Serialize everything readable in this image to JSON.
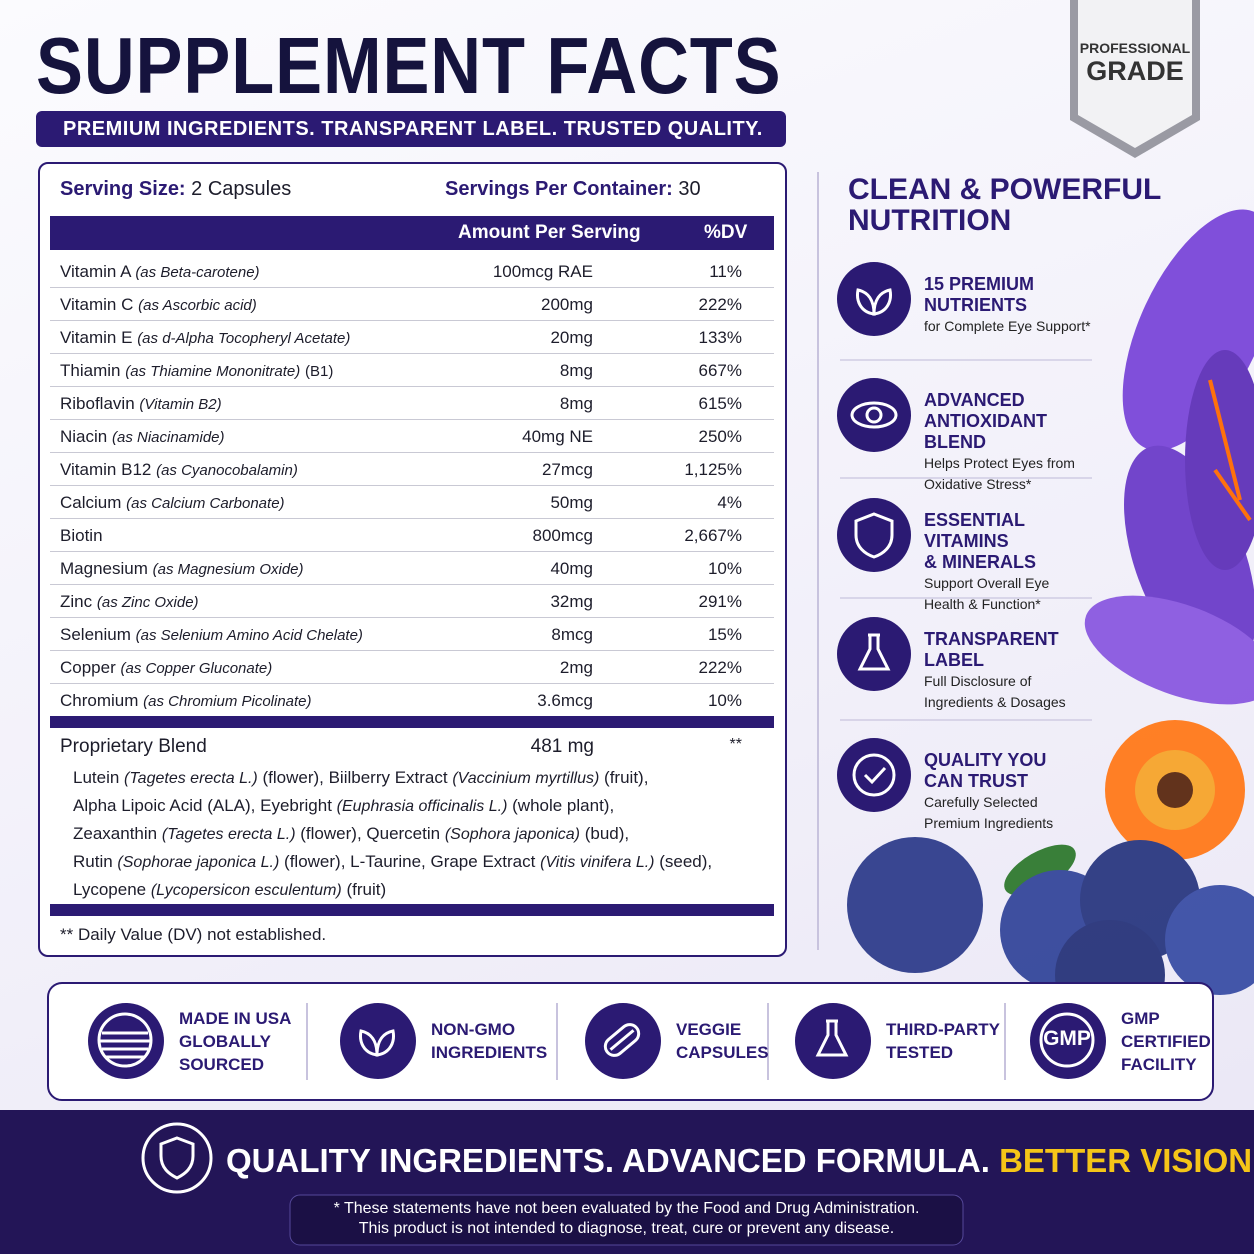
{
  "header": {
    "title": "SUPPLEMENT FACTS",
    "tagline": "PREMIUM INGREDIENTS. TRANSPARENT LABEL. TRUSTED QUALITY."
  },
  "badge": [
    "PROFESSIONAL",
    "GRADE"
  ],
  "facts": {
    "serving_size_label": "Serving Size:",
    "serving_size": "2 Capsules",
    "servings_label": "Servings Per Container:",
    "servings": "30",
    "columns": [
      "Amount Per Serving",
      "%DV"
    ],
    "rows": [
      {
        "name": "Vitamin A",
        "source": "(as Beta-carotene)",
        "amount": "100mcg RAE",
        "dv": "11%"
      },
      {
        "name": "Vitamin C",
        "source": "(as Ascorbic acid)",
        "amount": "200mg",
        "dv": "222%"
      },
      {
        "name": "Vitamin E",
        "source": "(as d-Alpha Tocopheryl Acetate)",
        "amount": "20mg",
        "dv": "133%"
      },
      {
        "name": "Thiamin",
        "source": "(as Thiamine Mononitrate)",
        "suffix": "(B1)",
        "amount": "8mg",
        "dv": "667%"
      },
      {
        "name": "Riboflavin",
        "source": "(Vitamin B2)",
        "amount": "8mg",
        "dv": "615%"
      },
      {
        "name": "Niacin",
        "source": "(as Niacinamide)",
        "amount": "40mg NE",
        "dv": "250%"
      },
      {
        "name": "Vitamin B12",
        "source": "(as Cyanocobalamin)",
        "amount": "27mcg",
        "dv": "1,125%"
      },
      {
        "name": "Calcium",
        "source": "(as Calcium Carbonate)",
        "amount": "50mg",
        "dv": "4%"
      },
      {
        "name": "Biotin",
        "amount": "800mcg",
        "dv": "2,667%"
      },
      {
        "name": "Magnesium",
        "source": "(as Magnesium Oxide)",
        "amount": "40mg",
        "dv": "10%"
      },
      {
        "name": "Zinc",
        "source": "(as Zinc Oxide)",
        "amount": "32mg",
        "dv": "291%"
      },
      {
        "name": "Selenium",
        "source": "(as Selenium Amino Acid Chelate)",
        "amount": "8mcg",
        "dv": "15%"
      },
      {
        "name": "Copper",
        "source": "(as Copper Gluconate)",
        "amount": "2mg",
        "dv": "222%"
      },
      {
        "name": "Chromium",
        "source": "(as Chromium Picolinate)",
        "amount": "3.6mcg",
        "dv": "10%"
      }
    ],
    "blend": {
      "name": "Proprietary Blend",
      "amount": "481 mg",
      "dv": "**",
      "lines": [
        [
          "Lutein ",
          "(Tagetes erecta L.)",
          " (flower), Biilberry Extract ",
          "(Vaccinium myrtillus)",
          " (fruit),"
        ],
        [
          "Alpha Lipoic Acid (ALA), Eyebright ",
          "(Euphrasia officinalis L.)",
          " (whole plant),"
        ],
        [
          "Zeaxanthin ",
          "(Tagetes erecta L.)",
          " (flower), Quercetin ",
          "(Sophora japonica)",
          " (bud),"
        ],
        [
          "Rutin ",
          "(Sophorae japonica L.)",
          " (flower), L-Taurine, Grape Extract ",
          "(Vitis vinifera L.)",
          " (seed),"
        ],
        [
          "Lycopene ",
          "(Lycopersicon esculentum)",
          " (fruit)"
        ]
      ]
    },
    "footnote": "** Daily Value (DV) not established."
  },
  "side": {
    "title": [
      "CLEAN & POWERFUL",
      "NUTRITION"
    ],
    "features": [
      {
        "title": [
          "15 PREMIUM",
          "NUTRIENTS"
        ],
        "text": [
          "for Complete Eye Support*"
        ]
      },
      {
        "title": [
          "ADVANCED",
          "ANTIOXIDANT BLEND"
        ],
        "text": [
          "Helps Protect Eyes from",
          "Oxidative Stress*"
        ]
      },
      {
        "title": [
          "ESSENTIAL VITAMINS",
          "& MINERALS"
        ],
        "text": [
          "Support Overall Eye",
          "Health & Function*"
        ]
      },
      {
        "title": [
          "TRANSPARENT",
          "LABEL"
        ],
        "text": [
          "Full Disclosure of",
          "Ingredients & Dosages"
        ]
      },
      {
        "title": [
          "QUALITY YOU",
          "CAN TRUST"
        ],
        "text": [
          "Carefully Selected",
          "Premium Ingredients"
        ]
      }
    ]
  },
  "badges": [
    {
      "label": [
        "MADE IN USA",
        "GLOBALLY",
        "SOURCED"
      ]
    },
    {
      "label": [
        "NON-GMO",
        "INGREDIENTS"
      ]
    },
    {
      "label": [
        "VEGGIE",
        "CAPSULES"
      ]
    },
    {
      "label": [
        "THIRD-PARTY",
        "TESTED"
      ]
    },
    {
      "icon_text": "GMP",
      "label": [
        "GMP",
        "CERTIFIED",
        "FACILITY"
      ]
    }
  ],
  "footer": {
    "slogan": "QUALITY INGREDIENTS. ADVANCED FORMULA.",
    "highlight": "BETTER VISION.*",
    "disclaimer": [
      "* These statements have not been evaluated by the Food and Drug Administration.",
      "This product is not intended to diagnose, treat, cure or prevent any disease."
    ]
  }
}
